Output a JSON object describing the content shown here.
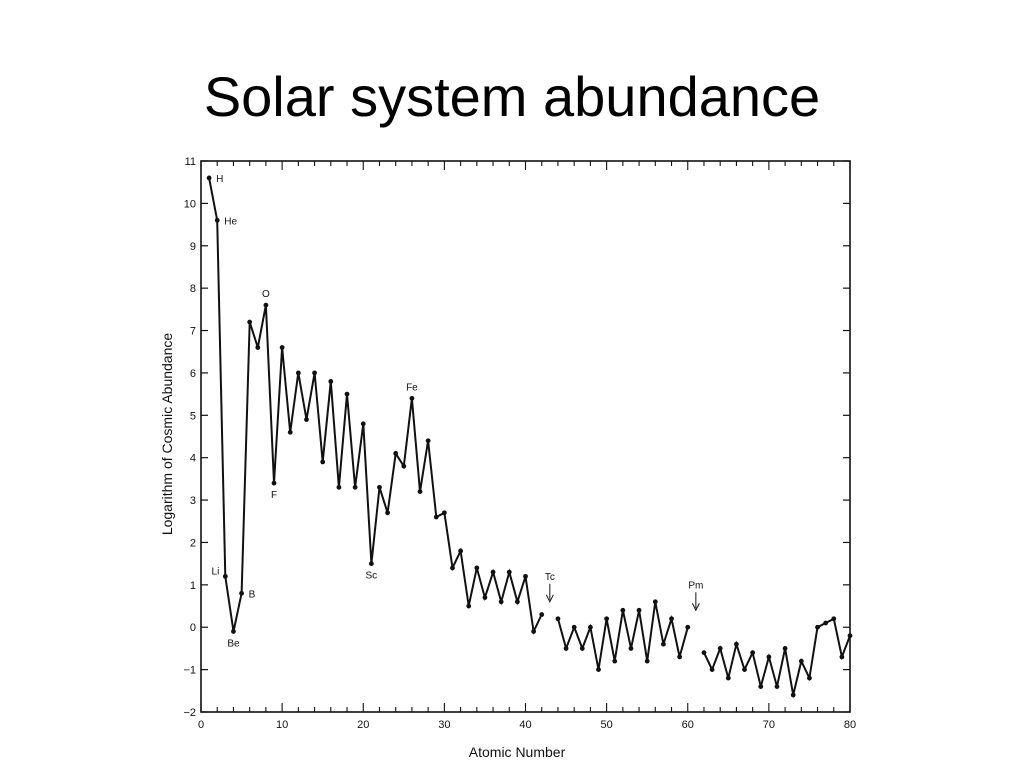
{
  "slide": {
    "title": "Solar system abundance"
  },
  "chart_data": {
    "type": "line",
    "title": "Solar system abundance",
    "xlabel": "Atomic Number",
    "ylabel": "Logarithm of Cosmic Abundance",
    "xlim": [
      0,
      80
    ],
    "ylim": [
      -2,
      11
    ],
    "x_ticks": [
      0,
      10,
      20,
      30,
      40,
      50,
      60,
      70,
      80
    ],
    "x_tick_labels": [
      "0",
      "10",
      "20",
      "30",
      "40",
      "50",
      "60",
      "70",
      "80"
    ],
    "y_ticks": [
      -2,
      -1,
      0,
      1,
      2,
      3,
      4,
      5,
      6,
      7,
      8,
      9,
      10,
      11
    ],
    "y_tick_labels": [
      "−2",
      "−1",
      "0",
      "1",
      "2",
      "3",
      "4",
      "5",
      "6",
      "7",
      "8",
      "9",
      "10",
      "11"
    ],
    "grid": false,
    "legend": "none",
    "series": [
      {
        "segments": [
          {
            "x": [
              1,
              2,
              3,
              4,
              5,
              6,
              7,
              8,
              9,
              10,
              11,
              12,
              13,
              14,
              15,
              16,
              17,
              18,
              19,
              20,
              21,
              22,
              23,
              24,
              25,
              26,
              27,
              28,
              29,
              30,
              31,
              32,
              33,
              34,
              35,
              36,
              37,
              38,
              39,
              40,
              41,
              42
            ],
            "y": [
              10.6,
              9.6,
              1.2,
              -0.1,
              0.8,
              7.2,
              6.6,
              7.6,
              3.4,
              6.6,
              4.6,
              6.0,
              4.9,
              6.0,
              3.9,
              5.8,
              3.3,
              5.5,
              3.3,
              4.8,
              1.5,
              3.3,
              2.7,
              4.1,
              3.8,
              5.4,
              3.2,
              4.4,
              2.6,
              2.7,
              1.4,
              1.8,
              0.5,
              1.4,
              0.7,
              1.3,
              0.6,
              1.3,
              0.6,
              1.2,
              -0.1,
              0.3
            ]
          },
          {
            "x": [
              44,
              45,
              46,
              47,
              48,
              49,
              50,
              51,
              52,
              53,
              54,
              55,
              56,
              57,
              58,
              59,
              60
            ],
            "y": [
              0.2,
              -0.5,
              0.0,
              -0.5,
              0.0,
              -1.0,
              0.2,
              -0.8,
              0.4,
              -0.5,
              0.4,
              -0.8,
              0.6,
              -0.4,
              0.2,
              -0.7,
              0.0
            ]
          },
          {
            "x": [
              62,
              63,
              64,
              65,
              66,
              67,
              68,
              69,
              70,
              71,
              72,
              73,
              74,
              75,
              76,
              77,
              78,
              79,
              80
            ],
            "y": [
              -0.6,
              -1.0,
              -0.5,
              -1.2,
              -0.4,
              -1.0,
              -0.6,
              -1.4,
              -0.7,
              -1.4,
              -0.5,
              -1.6,
              -0.8,
              -1.2,
              0.0,
              0.1,
              0.2,
              -0.7,
              -0.2
            ]
          }
        ]
      }
    ],
    "annotations": [
      {
        "text": "H",
        "x": 1,
        "y": 10.6,
        "pos": "right"
      },
      {
        "text": "He",
        "x": 2,
        "y": 9.6,
        "pos": "right"
      },
      {
        "text": "Li",
        "x": 3,
        "y": 1.2,
        "pos": "left"
      },
      {
        "text": "Be",
        "x": 4,
        "y": -0.1,
        "pos": "below"
      },
      {
        "text": "B",
        "x": 5,
        "y": 0.8,
        "pos": "right"
      },
      {
        "text": "O",
        "x": 8,
        "y": 7.6,
        "pos": "above"
      },
      {
        "text": "F",
        "x": 9,
        "y": 3.4,
        "pos": "below"
      },
      {
        "text": "Sc",
        "x": 21,
        "y": 1.5,
        "pos": "below"
      },
      {
        "text": "Fe",
        "x": 26,
        "y": 5.4,
        "pos": "above"
      },
      {
        "text": "Tc",
        "x": 43,
        "y": 0.6,
        "pos": "arrow"
      },
      {
        "text": "Pm",
        "x": 61,
        "y": 0.4,
        "pos": "arrow"
      }
    ]
  }
}
